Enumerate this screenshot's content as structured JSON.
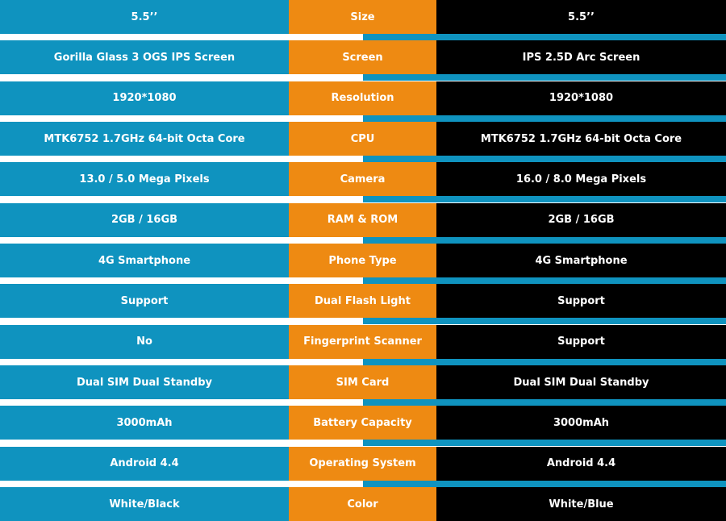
{
  "table": {
    "rows": [
      [
        "5.5’’",
        "Size",
        "5.5’’"
      ],
      [
        "Gorilla Glass 3 OGS IPS Screen",
        "Screen",
        "IPS 2.5D Arc Screen"
      ],
      [
        "1920*1080",
        "Resolution",
        "1920*1080"
      ],
      [
        "MTK6752 1.7GHz 64-bit Octa Core",
        "CPU",
        "MTK6752 1.7GHz 64-bit Octa Core"
      ],
      [
        "13.0 / 5.0 Mega Pixels",
        "Camera",
        "16.0 / 8.0 Mega Pixels"
      ],
      [
        "2GB / 16GB",
        "RAM & ROM",
        "2GB / 16GB"
      ],
      [
        "4G Smartphone",
        "Phone Type",
        "4G Smartphone"
      ],
      [
        "Support",
        "Dual Flash Light",
        "Support"
      ],
      [
        "No",
        "Fingerprint Scanner",
        "Support"
      ],
      [
        "Dual SIM Dual Standby",
        "SIM Card",
        "Dual SIM Dual Standby"
      ],
      [
        "3000mAh",
        "Battery Capacity",
        "3000mAh"
      ],
      [
        "Android 4.4",
        "Operating System",
        "Android 4.4"
      ],
      [
        "White/Black",
        "Color",
        "White/Blue"
      ]
    ]
  }
}
